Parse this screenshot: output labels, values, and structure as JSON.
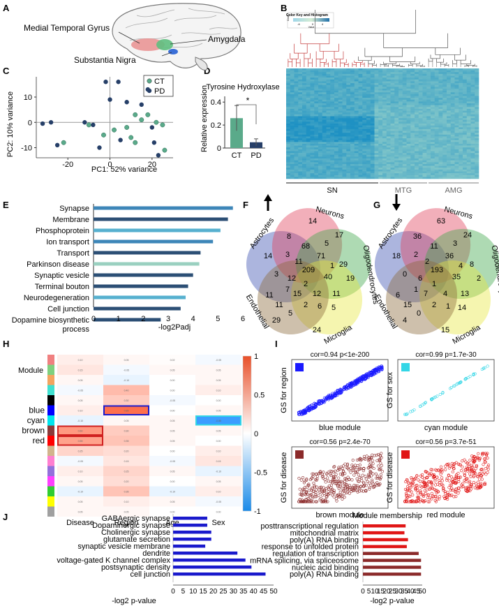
{
  "panel_labels": [
    "A",
    "B",
    "C",
    "D",
    "E",
    "F",
    "G",
    "H",
    "I",
    "J"
  ],
  "brain": {
    "regions": [
      "Medial Temporal Gyrus",
      "Amygdala",
      "Substantia Nigra"
    ],
    "colors": {
      "mtg": "#e88a8a",
      "amg": "#5fbf7f",
      "sn": "#3a6fd8"
    }
  },
  "heatmap_b": {
    "color_key_title": "Color Key and Histogram",
    "count_label": "Count",
    "key_ticks": [
      "-6",
      "0",
      "4"
    ],
    "key_xlabel": "Value",
    "groups": [
      "SN",
      "MTG",
      "AMG"
    ]
  },
  "chart_data": [
    {
      "id": "C",
      "type": "scatter",
      "xlabel": "PC1: 52% variance",
      "ylabel": "PC2: 10% variance",
      "xlim": [
        -35,
        30
      ],
      "ylim": [
        -14,
        18
      ],
      "xticks": [
        -20,
        0,
        20
      ],
      "yticks": [
        -10,
        0,
        10
      ],
      "legend": "top-right",
      "series": [
        {
          "name": "CT",
          "color": "#5aaa8a",
          "points": [
            [
              -22,
              -8
            ],
            [
              -10,
              -1
            ],
            [
              -3,
              -5
            ],
            [
              2,
              -3
            ],
            [
              8,
              -2
            ],
            [
              10,
              -6
            ],
            [
              12,
              3
            ],
            [
              15,
              1
            ],
            [
              18,
              3
            ],
            [
              22,
              0
            ],
            [
              25,
              -1
            ],
            [
              26,
              -11
            ],
            [
              12,
              -8
            ]
          ]
        },
        {
          "name": "PD",
          "color": "#263f68",
          "points": [
            [
              -32,
              -0.5
            ],
            [
              -28,
              0
            ],
            [
              -25,
              -9
            ],
            [
              -12,
              0
            ],
            [
              -8,
              -1
            ],
            [
              -2,
              16
            ],
            [
              0,
              9
            ],
            [
              4,
              16
            ],
            [
              5,
              -7
            ],
            [
              8,
              8
            ],
            [
              15,
              7
            ],
            [
              18,
              13
            ],
            [
              21,
              -8
            ],
            [
              23,
              -13
            ],
            [
              -5,
              -10
            ],
            [
              20,
              -2
            ]
          ]
        }
      ]
    },
    {
      "id": "D",
      "type": "bar",
      "title": "Tyrosine Hydroxylase",
      "ylabel": "Relative expression",
      "categories": [
        "CT",
        "PD"
      ],
      "values": [
        0.26,
        0.05
      ],
      "errors": [
        0.11,
        0.03
      ],
      "ylim": [
        0,
        0.45
      ],
      "yticks": [
        0,
        0.2,
        0.4
      ],
      "colors": [
        "#5aaa8a",
        "#263f68"
      ],
      "annotation": "*"
    },
    {
      "id": "E",
      "type": "bar",
      "orientation": "horizontal",
      "xlabel": "-log2Padj",
      "xlim": [
        0,
        6
      ],
      "xticks": [
        0,
        1,
        2,
        3,
        4,
        5,
        6
      ],
      "categories": [
        "Synapse",
        "Membrane",
        "Phosphoprotein",
        "Ion transport",
        "Transport",
        "Parkinson disease",
        "Synaptic vesicle",
        "Terminal bouton",
        "Neurodegeneration",
        "Cell junction",
        "Dopamine biosynthetic process"
      ],
      "values": [
        5.6,
        5.4,
        5.1,
        4.8,
        4.3,
        4.25,
        4.0,
        3.8,
        3.7,
        3.5,
        2.7
      ],
      "colors": [
        "#3d86b8",
        "#2c4f75",
        "#56b0cf",
        "#3d86b8",
        "#2c4f75",
        "#9ad0c0",
        "#2c4f75",
        "#2c4f75",
        "#56b0cf",
        "#2c4f75",
        "#2c4f75"
      ]
    },
    {
      "id": "H",
      "type": "heatmap",
      "module_label": "Module",
      "columns": [
        "Disease",
        "Region",
        "Age",
        "Sex"
      ],
      "row_labels": {
        "blue": 5,
        "cyan": 6,
        "brown": 7,
        "red": 8
      },
      "module_colors": [
        "#f08080",
        "#7fd07f",
        "#f4a460",
        "#40e0d0",
        "#000000",
        "#0000ff",
        "#00e5ee",
        "#8b3a3a",
        "#ff0000",
        "#d2b48c",
        "#ff7fd0",
        "#9370db",
        "#ff40ff",
        "#32cd32",
        "#ffff00",
        "#a0a0a0"
      ],
      "values": [
        [
          0.1,
          0.05,
          0.02,
          -0.05
        ],
        [
          0.15,
          -0.05,
          0.05,
          0.05
        ],
        [
          0.05,
          -0.1,
          0.0,
          0.05
        ],
        [
          -0.05,
          0.4,
          0.0,
          0.1
        ],
        [
          0.05,
          0.3,
          -0.05,
          0.0
        ],
        [
          0.1,
          0.85,
          0.0,
          0.05
        ],
        [
          -0.1,
          0.05,
          0.05,
          -0.85
        ],
        [
          0.6,
          0.3,
          0.05,
          0.05
        ],
        [
          0.55,
          0.35,
          0.05,
          0.0
        ],
        [
          0.25,
          0.2,
          0.0,
          0.1
        ],
        [
          -0.05,
          0.15,
          -0.05,
          0.15
        ],
        [
          0.1,
          0.25,
          0.05,
          -0.1
        ],
        [
          0.05,
          0.2,
          0.0,
          0.05
        ],
        [
          -0.1,
          0.35,
          -0.1,
          0.1
        ],
        [
          0.05,
          0.1,
          0.05,
          -0.05
        ],
        [
          0.05,
          0.05,
          0.0,
          0.0
        ]
      ],
      "highlight": [
        [
          5,
          1
        ],
        [
          6,
          3
        ],
        [
          7,
          0
        ],
        [
          8,
          0
        ]
      ],
      "scale_ticks": [
        1,
        0.5,
        0,
        -0.5,
        -1
      ]
    },
    {
      "id": "I",
      "type": "scatter",
      "xlabel": "Module membership",
      "panels": [
        {
          "title": "cor=0.94 p<1e-200",
          "ylabel": "GS for region",
          "xlabel": "blue module",
          "color": "#1a1aff",
          "trend": 0.94,
          "n": 900
        },
        {
          "title": "cor=0.99 p=1.7e-30",
          "ylabel": "GS for sex",
          "xlabel": "cyan module",
          "color": "#33d6e6",
          "trend": 0.99,
          "n": 50
        },
        {
          "title": "cor=0.56 p=2.4e-70",
          "ylabel": "GS for disease",
          "xlabel": "brown module",
          "color": "#8b2a2a",
          "trend": 0.56,
          "n": 700
        },
        {
          "title": "cor=0.56 p=3.7e-51",
          "ylabel": "GS for disease",
          "xlabel": "red module",
          "color": "#e01515",
          "trend": 0.56,
          "n": 600
        }
      ]
    },
    {
      "id": "J-blue",
      "type": "bar",
      "orientation": "horizontal",
      "xlabel": "-log2 p-value",
      "xlim": [
        0,
        50
      ],
      "xticks": [
        0,
        5,
        10,
        15,
        20,
        25,
        30,
        35,
        40,
        45,
        50
      ],
      "color": "#1a1acc",
      "categories": [
        "GABAergic synapse",
        "Dopaminergic synapse",
        "Cholinergic synapse",
        "glutamate secretion",
        "synaptic vesicle membrane",
        "dendrite",
        "voltage-gated K channel complex",
        "postsynaptic density",
        "cell junction"
      ],
      "values": [
        17,
        17,
        19,
        19,
        16,
        32,
        36,
        39,
        46
      ]
    },
    {
      "id": "J-red",
      "type": "bar",
      "orientation": "horizontal",
      "xlabel": "-log2 p-value",
      "xlim": [
        0,
        50
      ],
      "xticks": [
        0,
        5,
        10,
        15,
        20,
        25,
        30,
        35,
        40,
        45,
        50
      ],
      "categories": [
        "posttranscriptional regulation",
        "mitochondrial matrix",
        "poly(A) RNA binding",
        "response to unfolded protein",
        "regulation of transcription",
        "mRNA splicing, via spliceosome",
        "nucleic acid binding",
        "poly(A) RNA binding"
      ],
      "values": [
        36,
        35,
        38,
        37,
        47,
        49,
        49,
        49
      ],
      "colors": [
        "#e01515",
        "#e01515",
        "#e01515",
        "#e01515",
        "#8b2a2a",
        "#8b2a2a",
        "#8b2a2a",
        "#8b2a2a"
      ]
    }
  ],
  "venn_f": {
    "arrow": "up",
    "sets": [
      "Astrocytes",
      "Neurons",
      "Oligodendrocytes",
      "Microglia",
      "Endothelial"
    ],
    "numbers": [
      "14",
      "8",
      "14",
      "5",
      "17",
      "3",
      "3",
      "68",
      "71",
      "29",
      "19",
      "11",
      "209",
      "40",
      "12",
      "11",
      "15",
      "12",
      "11",
      "5",
      "2",
      "2",
      "6",
      "5",
      "29",
      "24",
      "11",
      "1",
      "7"
    ]
  },
  "venn_g": {
    "arrow": "down",
    "sets": [
      "Astrocytes",
      "Neurons",
      "Oligodendrocytes",
      "Microglia",
      "Endothelial"
    ],
    "numbers": [
      "18",
      "36",
      "63",
      "3",
      "24",
      "0",
      "2",
      "11",
      "36",
      "8",
      "2",
      "6",
      "193",
      "35",
      "6",
      "15",
      "7",
      "4",
      "13",
      "14",
      "1",
      "2",
      "1",
      "0",
      "4",
      "15",
      "2",
      "4",
      "1"
    ]
  },
  "colors": {
    "sets": [
      "#3a4fb0",
      "#e0405a",
      "#3da84a",
      "#e8e840",
      "#8b6a3a"
    ]
  }
}
